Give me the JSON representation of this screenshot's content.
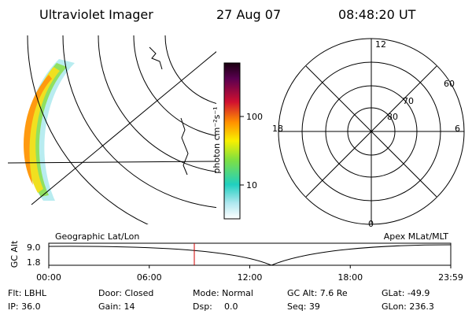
{
  "header": {
    "instrument": "Ultraviolet Imager",
    "date": "27 Aug 07",
    "time": "08:48:20 UT"
  },
  "colorbar": {
    "label": "photon cm⁻²s⁻¹",
    "ticks": [
      "100",
      "10"
    ]
  },
  "polar": {
    "mlt_labels": [
      "12",
      "18",
      "6",
      "0"
    ],
    "lat_labels": [
      "60",
      "70",
      "80"
    ]
  },
  "orbit": {
    "left_title": "Geographic Lat/Lon",
    "right_title": "Apex MLat/MLT",
    "axis_label": "GC Alt",
    "y_labels": [
      "9.0",
      "1.8"
    ],
    "time_labels": [
      "00:00",
      "06:00",
      "12:00",
      "18:00",
      "23:59"
    ]
  },
  "footer": {
    "rows": [
      [
        "Flt: LBHL",
        "Door: Closed",
        "Mode: Normal",
        "GC Alt: 7.6 Re",
        "GLat: -49.9"
      ],
      [
        "IP: 36.0",
        "Gain: 14",
        "Dsp:",
        "0.0",
        "Seq: 39",
        "GLon: 236.3"
      ]
    ]
  }
}
